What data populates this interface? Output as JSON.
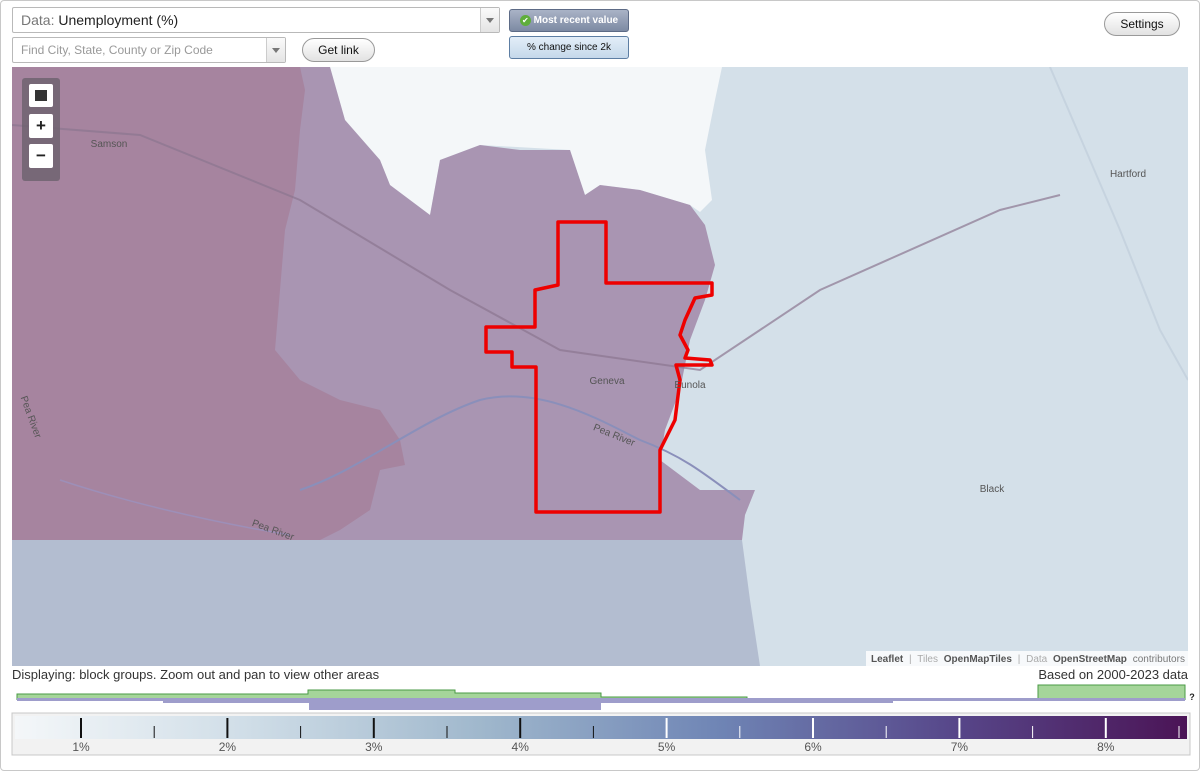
{
  "controls": {
    "data_label": "Data:",
    "data_value": "Unemployment (%)",
    "search_placeholder": "Find City, State, County or Zip Code",
    "get_link": "Get link",
    "mode_buttons": [
      "Most recent value",
      "% change since 2k"
    ],
    "settings": "Settings"
  },
  "map": {
    "zoom_in": "+",
    "zoom_out": "−",
    "places": [
      "Samson",
      "Hartford",
      "Geneva",
      "Eunola",
      "Black",
      "Pea River",
      "Pea River",
      "Pea River"
    ],
    "attribution": {
      "leaflet": "Leaflet",
      "separator": "|",
      "tiles_label": "Tiles",
      "tiles": "OpenMapTiles",
      "data_label": "Data",
      "data": "OpenStreetMap",
      "contributors": "contributors"
    }
  },
  "status": {
    "displaying": "Displaying: block groups. Zoom out and pan to view other areas",
    "based_on": "Based on 2000-2023 data"
  },
  "legend": {
    "help": "?",
    "ticks": [
      "1%",
      "2%",
      "3%",
      "4%",
      "5%",
      "6%",
      "7%",
      "8%"
    ]
  }
}
